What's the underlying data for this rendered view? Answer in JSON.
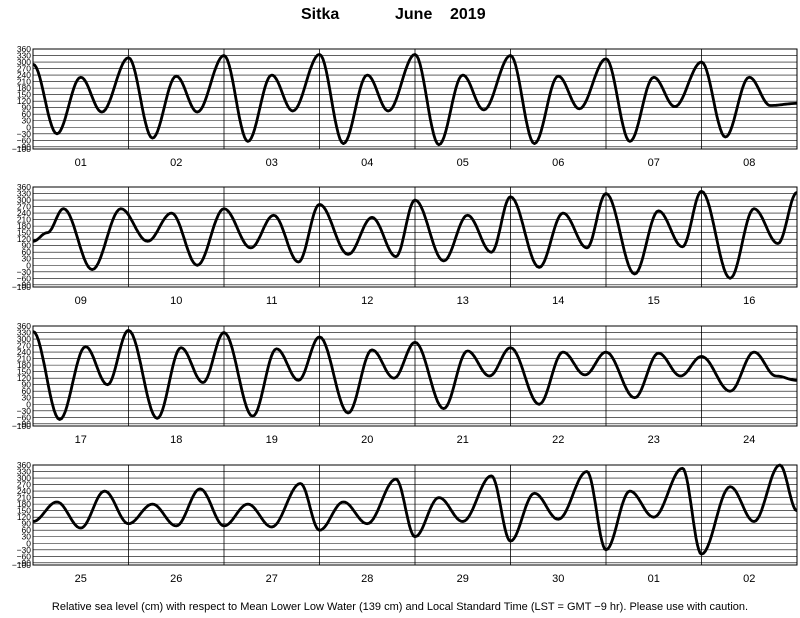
{
  "title": {
    "station": "Sitka",
    "month": "June",
    "year": "2019"
  },
  "footnote": "Relative sea level (cm) with respect to Mean Lower Low Water (139 cm) and Local Standard Time (LST = GMT −9 hr). Please use with caution.",
  "chart_data": [
    {
      "type": "line",
      "ylabel": "",
      "ylim": [
        -100,
        360
      ],
      "yticks": [
        "360",
        "330",
        "300",
        "270",
        "240",
        "210",
        "180",
        "150",
        "120",
        "90",
        "60",
        "30",
        "0",
        "−30",
        "−60",
        "−90",
        "−100"
      ],
      "days": [
        "01",
        "02",
        "03",
        "04",
        "05",
        "06",
        "07",
        "08"
      ],
      "series": [
        {
          "extrema": [
            [
              0,
              290
            ],
            [
              0.25,
              -30
            ],
            [
              0.5,
              230
            ],
            [
              0.72,
              70
            ],
            [
              1,
              320
            ],
            [
              1.25,
              -50
            ],
            [
              1.5,
              235
            ],
            [
              1.72,
              70
            ],
            [
              2,
              330
            ],
            [
              2.25,
              -65
            ],
            [
              2.5,
              240
            ],
            [
              2.72,
              75
            ],
            [
              3,
              335
            ],
            [
              3.25,
              -75
            ],
            [
              3.5,
              240
            ],
            [
              3.72,
              75
            ],
            [
              4,
              335
            ],
            [
              4.25,
              -80
            ],
            [
              4.5,
              240
            ],
            [
              4.72,
              80
            ],
            [
              5,
              330
            ],
            [
              5.25,
              -75
            ],
            [
              5.5,
              235
            ],
            [
              5.72,
              85
            ],
            [
              6,
              315
            ],
            [
              6.25,
              -65
            ],
            [
              6.5,
              230
            ],
            [
              6.72,
              95
            ],
            [
              7,
              300
            ],
            [
              7.25,
              -45
            ],
            [
              7.5,
              230
            ],
            [
              7.72,
              100
            ],
            [
              8,
              110
            ]
          ]
        }
      ]
    },
    {
      "type": "line",
      "ylabel": "",
      "ylim": [
        -100,
        360
      ],
      "yticks": [
        "360",
        "330",
        "300",
        "270",
        "240",
        "210",
        "180",
        "150",
        "120",
        "90",
        "60",
        "30",
        "0",
        "−30",
        "−60",
        "−90",
        "−100"
      ],
      "days": [
        "09",
        "10",
        "11",
        "12",
        "13",
        "14",
        "15",
        "16"
      ],
      "series": [
        {
          "extrema": [
            [
              0,
              110
            ],
            [
              0.15,
              150
            ],
            [
              0.32,
              260
            ],
            [
              0.62,
              -20
            ],
            [
              0.92,
              260
            ],
            [
              1.2,
              110
            ],
            [
              1.45,
              240
            ],
            [
              1.72,
              0
            ],
            [
              2,
              260
            ],
            [
              2.28,
              80
            ],
            [
              2.52,
              230
            ],
            [
              2.78,
              15
            ],
            [
              3,
              280
            ],
            [
              3.3,
              50
            ],
            [
              3.55,
              220
            ],
            [
              3.8,
              40
            ],
            [
              4,
              300
            ],
            [
              4.3,
              20
            ],
            [
              4.55,
              230
            ],
            [
              4.8,
              60
            ],
            [
              5,
              315
            ],
            [
              5.3,
              -10
            ],
            [
              5.55,
              240
            ],
            [
              5.8,
              80
            ],
            [
              6,
              330
            ],
            [
              6.3,
              -40
            ],
            [
              6.55,
              250
            ],
            [
              6.8,
              85
            ],
            [
              7,
              340
            ],
            [
              7.3,
              -60
            ],
            [
              7.55,
              260
            ],
            [
              7.8,
              100
            ],
            [
              8,
              335
            ]
          ]
        }
      ]
    },
    {
      "type": "line",
      "ylabel": "",
      "ylim": [
        -100,
        360
      ],
      "yticks": [
        "360",
        "330",
        "300",
        "270",
        "240",
        "210",
        "180",
        "150",
        "120",
        "90",
        "60",
        "30",
        "0",
        "−30",
        "−60",
        "−90",
        "−100"
      ],
      "days": [
        "17",
        "18",
        "19",
        "20",
        "21",
        "22",
        "23",
        "24"
      ],
      "series": [
        {
          "extrema": [
            [
              0,
              335
            ],
            [
              0.28,
              -70
            ],
            [
              0.55,
              265
            ],
            [
              0.78,
              90
            ],
            [
              1,
              340
            ],
            [
              1.3,
              -65
            ],
            [
              1.55,
              260
            ],
            [
              1.78,
              100
            ],
            [
              2,
              330
            ],
            [
              2.3,
              -55
            ],
            [
              2.55,
              255
            ],
            [
              2.78,
              110
            ],
            [
              3,
              310
            ],
            [
              3.3,
              -40
            ],
            [
              3.55,
              250
            ],
            [
              3.78,
              120
            ],
            [
              4,
              285
            ],
            [
              4.3,
              -20
            ],
            [
              4.55,
              245
            ],
            [
              4.78,
              130
            ],
            [
              5,
              260
            ],
            [
              5.3,
              0
            ],
            [
              5.55,
              240
            ],
            [
              5.78,
              135
            ],
            [
              6,
              240
            ],
            [
              6.3,
              30
            ],
            [
              6.55,
              235
            ],
            [
              6.78,
              130
            ],
            [
              7,
              220
            ],
            [
              7.3,
              60
            ],
            [
              7.55,
              240
            ],
            [
              7.78,
              130
            ],
            [
              8,
              110
            ]
          ]
        }
      ]
    },
    {
      "type": "line",
      "ylabel": "",
      "ylim": [
        -100,
        360
      ],
      "yticks": [
        "360",
        "330",
        "300",
        "270",
        "240",
        "210",
        "180",
        "150",
        "120",
        "90",
        "60",
        "30",
        "0",
        "−30",
        "−60",
        "−90",
        "−100"
      ],
      "days": [
        "25",
        "26",
        "27",
        "28",
        "29",
        "30",
        "01",
        "02"
      ],
      "series": [
        {
          "extrema": [
            [
              0,
              100
            ],
            [
              0.25,
              190
            ],
            [
              0.5,
              70
            ],
            [
              0.75,
              240
            ],
            [
              1,
              90
            ],
            [
              1.25,
              180
            ],
            [
              1.5,
              80
            ],
            [
              1.75,
              250
            ],
            [
              2,
              80
            ],
            [
              2.25,
              180
            ],
            [
              2.5,
              75
            ],
            [
              2.8,
              275
            ],
            [
              3,
              60
            ],
            [
              3.25,
              190
            ],
            [
              3.5,
              90
            ],
            [
              3.8,
              295
            ],
            [
              4,
              30
            ],
            [
              4.25,
              210
            ],
            [
              4.5,
              100
            ],
            [
              4.8,
              310
            ],
            [
              5,
              10
            ],
            [
              5.25,
              230
            ],
            [
              5.5,
              110
            ],
            [
              5.8,
              330
            ],
            [
              6,
              -30
            ],
            [
              6.25,
              240
            ],
            [
              6.5,
              120
            ],
            [
              6.8,
              345
            ],
            [
              7,
              -50
            ],
            [
              7.3,
              260
            ],
            [
              7.55,
              100
            ],
            [
              7.82,
              360
            ],
            [
              8,
              150
            ]
          ]
        }
      ]
    }
  ]
}
